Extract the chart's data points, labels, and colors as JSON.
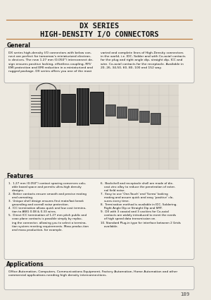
{
  "title_line1": "DX SERIES",
  "title_line2": "HIGH-DENSITY I/O CONNECTORS",
  "section_general": "General",
  "gen_left": "DX series high-density I/O connectors with below con-\nnect are perfect for tomorrow's miniaturized electron-\nic devices. The new 1.27 mm (0.050\") interconnect de-\nsign ensures positive locking, effortless coupling, RFI/\nEMI protection and EMI reduction in a miniaturized and\nrugged package. DX series offers you one of the most",
  "gen_right": "varied and complete lines of High-Density connectors\nin the world, i.e. IDC, Solder and with Co-axial contacts\nfor the plug and right angle dip, straight dip, ICC and\nwire. Co-axial contacts for the receptacle. Available in\n20, 26, 34,50, 60, 80, 100 and 152 way.",
  "section_features": "Features",
  "feat_left": "1.  1.27 mm (0.050\") contact spacing conserves valu-\n    able board space and permits ultra-high density\n    designs.\n2.  Better contacts ensure smooth and precise mating\n    and unmating.\n3.  Unique shell design ensures first mate/last break\n    grounding and overall noise protection.\n4.  ICC termination allows quick and low cost termina-\n    tion to AWG 0.08 & 0.33 wires.\n5.  Direct ICC termination of 1.27 mm pitch public and\n    coax plane contacts is possible simply by replac-\n    ing the connector, allowing you to select a termina-\n    tion system meeting requirements. Mass produc-tion\n    and mass production, for example.",
  "feat_right": "6.  Backshell and receptacle shell are made of die-\n    cast zinc alloy to reduce the penetration of exter-\n    nal field noise.\n7.  Easy to use 'One-Touch' and 'Screw' looking\n    mating and assure quick and easy 'positive' clo-\n    sures every time.\n8.  Termination method is available in IDC, Soldering,\n    Right Angle Dip or Straight Dip and SMT.\n9.  DX with 3 coaxial and 3 cavities for Co-axial\n    contacts are widely introduced to meet the needs\n    of high speed data transmission on.\n10. Standard Plug-in type for interface between 2 Grids\n    available.",
  "section_applications": "Applications",
  "app_text": "Office Automation, Computers, Communications Equipment, Factory Automation, Home Automation and other\ncommercial applications needing high density interconnections.",
  "page_number": "189",
  "bg_color": "#ede9e0",
  "title_color": "#111111",
  "header_color": "#111111",
  "line_color_orange": "#b87333",
  "line_color_dark": "#555555",
  "box_bg": "#f5f2eb",
  "box_border": "#aaaaaa",
  "text_color": "#111111"
}
